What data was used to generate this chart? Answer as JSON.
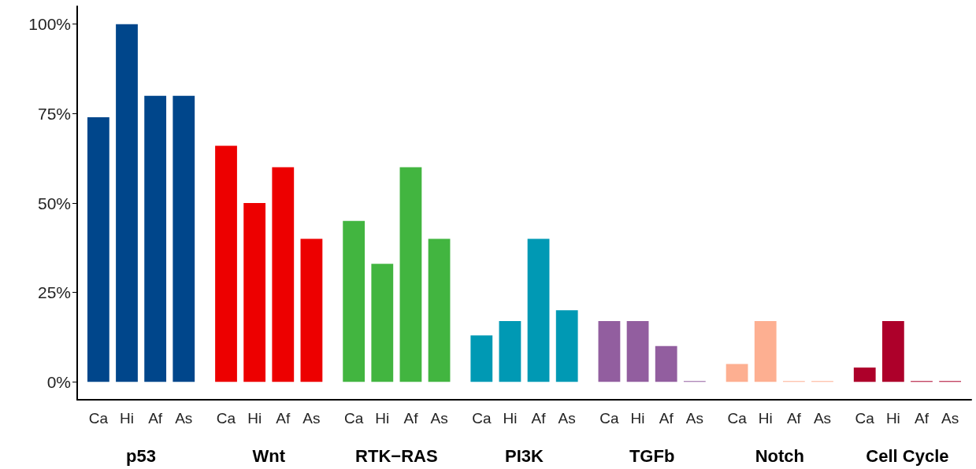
{
  "chart_data": {
    "type": "bar",
    "categories": [
      "p53",
      "Wnt",
      "RTK−RAS",
      "PI3K",
      "TGFb",
      "Notch",
      "Cell Cycle"
    ],
    "series": [
      {
        "name": "Ca",
        "values": [
          74,
          66,
          45,
          13,
          17,
          5,
          4
        ],
        "colors": [
          "#00468b",
          "#ed0000",
          "#42b540",
          "#0099b4",
          "#925e9f",
          "#fdaf91",
          "#ad002a"
        ]
      },
      {
        "name": "Hi",
        "values": [
          100,
          50,
          33,
          17,
          17,
          17,
          17
        ],
        "colors": [
          "#00468b",
          "#ed0000",
          "#42b540",
          "#0099b4",
          "#925e9f",
          "#fdaf91",
          "#ad002a"
        ]
      },
      {
        "name": "Af",
        "values": [
          80,
          60,
          60,
          40,
          10,
          0,
          0
        ],
        "colors": [
          "#00468b",
          "#ed0000",
          "#42b540",
          "#0099b4",
          "#925e9f",
          "#fdaf91",
          "#ad002a"
        ]
      },
      {
        "name": "As",
        "values": [
          80,
          40,
          40,
          20,
          0,
          0,
          0
        ],
        "colors": [
          "#00468b",
          "#ed0000",
          "#42b540",
          "#0099b4",
          "#925e9f",
          "#fdaf91",
          "#ad002a"
        ]
      }
    ],
    "ylim": [
      -5,
      105
    ],
    "yticks": [
      {
        "value": 0,
        "label": "0%"
      },
      {
        "value": 25,
        "label": "25%"
      },
      {
        "value": 50,
        "label": "50%"
      },
      {
        "value": 75,
        "label": "75%"
      },
      {
        "value": 100,
        "label": "100%"
      }
    ]
  }
}
